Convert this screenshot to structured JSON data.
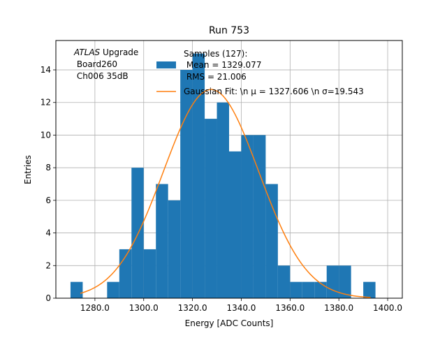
{
  "chart_data": {
    "type": "bar",
    "title": "Run 753",
    "xlabel": "Energy [ADC Counts]",
    "ylabel": "Entries",
    "xlim": [
      1264.0,
      1406.0
    ],
    "ylim": [
      0,
      15.8
    ],
    "grid": true,
    "xticks": [
      1280,
      1300,
      1320,
      1340,
      1360,
      1380,
      1400
    ],
    "xtick_labels": [
      "1280.0",
      "1300.0",
      "1320.0",
      "1340.0",
      "1360.0",
      "1380.0",
      "1400.0"
    ],
    "yticks": [
      0,
      2,
      4,
      6,
      8,
      10,
      12,
      14
    ],
    "ytick_labels": [
      "0",
      "2",
      "4",
      "6",
      "8",
      "10",
      "12",
      "14"
    ],
    "histogram": {
      "name": "Samples (127):",
      "color": "#1f77b4",
      "bin_edges": [
        1270,
        1275,
        1280,
        1285,
        1290,
        1295,
        1300,
        1305,
        1310,
        1315,
        1320,
        1325,
        1330,
        1335,
        1340,
        1345,
        1350,
        1355,
        1360,
        1365,
        1370,
        1375,
        1380,
        1385,
        1390,
        1395
      ],
      "counts": [
        1,
        0,
        0,
        1,
        3,
        8,
        3,
        7,
        6,
        14,
        15,
        11,
        12,
        9,
        10,
        10,
        7,
        2,
        1,
        1,
        1,
        2,
        2,
        0,
        1
      ]
    },
    "fit": {
      "name": "Gaussian Fit",
      "color": "#ff7f0e",
      "mu": 1327.606,
      "sigma": 19.543,
      "amplitude": 12.8,
      "x_range": [
        1274,
        1393
      ]
    },
    "legend": {
      "position": "top-right",
      "hist_lines": [
        "Samples (127):",
        " Mean = 1329.077",
        " RMS = 21.006"
      ],
      "fit_label": "Gaussian Fit: \\n μ = 1327.606 \\n σ=19.543"
    },
    "annotation": {
      "lines": [
        "ATLAS Upgrade",
        " Board260",
        " Ch006 35dB"
      ],
      "italic_word": "ATLAS"
    }
  }
}
